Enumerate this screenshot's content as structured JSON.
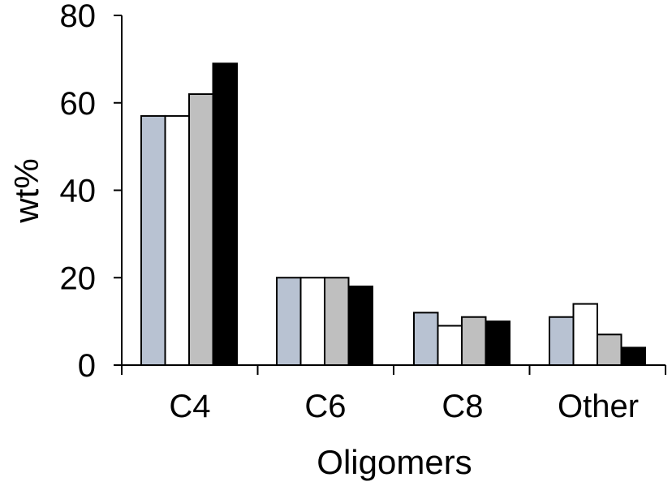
{
  "chart_data": {
    "type": "bar",
    "categories": [
      "C4",
      "C6",
      "C8",
      "Other"
    ],
    "series": [
      {
        "values": [
          57,
          20,
          12,
          11
        ],
        "color": "#b8c2d2"
      },
      {
        "values": [
          57,
          20,
          9,
          14
        ],
        "color": "#ffffff"
      },
      {
        "values": [
          62,
          20,
          11,
          7
        ],
        "color": "#bfbfbf"
      },
      {
        "values": [
          69,
          18,
          10,
          4
        ],
        "color": "#000000"
      }
    ],
    "title": "",
    "xlabel": "Oligomers",
    "ylabel": "wt%",
    "ylim": [
      0,
      80
    ],
    "yticks": [
      "0",
      "20",
      "40",
      "60",
      "80"
    ],
    "grid": false,
    "legend": "none"
  }
}
